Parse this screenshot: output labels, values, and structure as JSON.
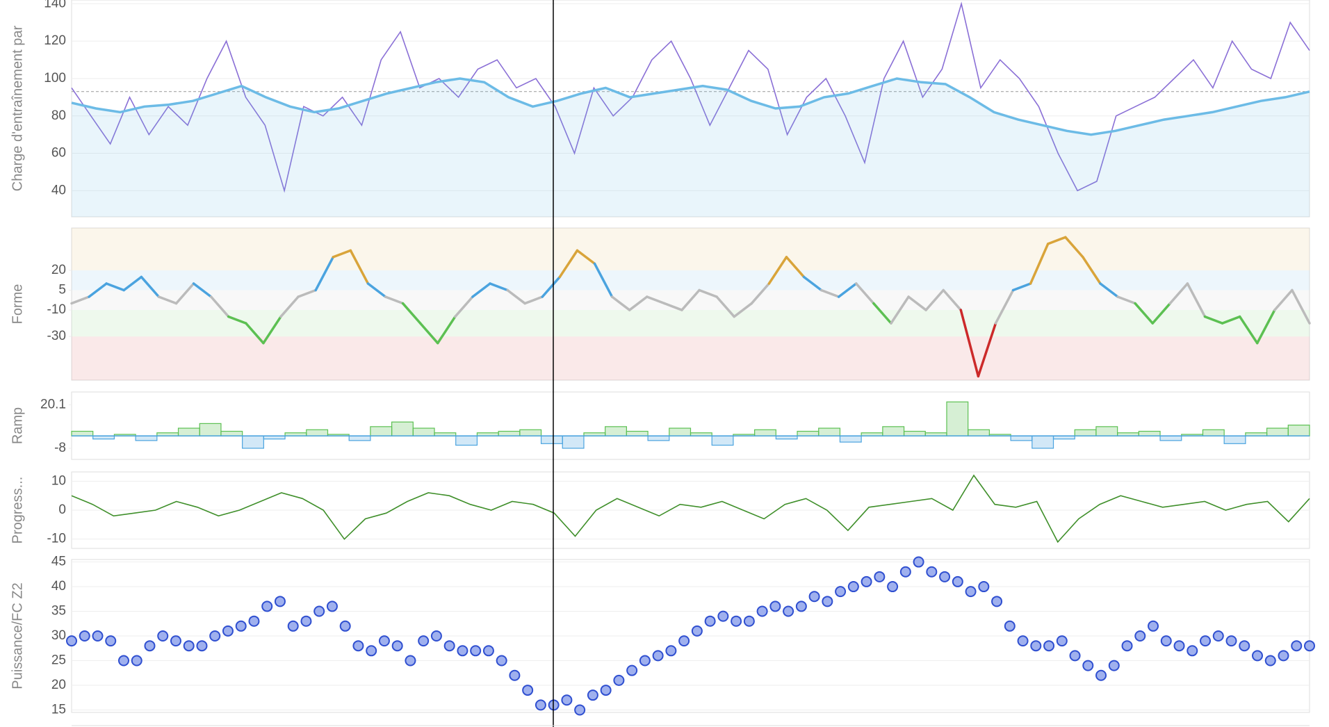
{
  "chart_data": [
    {
      "type": "line",
      "ylabel": "Charge d'entraînement par",
      "ylim": [
        26,
        142
      ],
      "yticks": [
        40,
        60,
        80,
        100,
        120,
        140
      ],
      "grid": true,
      "reference_line": 93,
      "series": [
        {
          "color": "#8a6fd6",
          "fill": false,
          "values": [
            95,
            80,
            65,
            90,
            70,
            85,
            75,
            100,
            120,
            90,
            75,
            40,
            85,
            80,
            90,
            75,
            110,
            125,
            95,
            100,
            90,
            105,
            110,
            95,
            100,
            85,
            60,
            95,
            80,
            90,
            110,
            120,
            100,
            75,
            95,
            115,
            105,
            70,
            90,
            100,
            80,
            55,
            100,
            120,
            90,
            105,
            140,
            95,
            110,
            100,
            85,
            60,
            40,
            45,
            80,
            85,
            90,
            100,
            110,
            95,
            120,
            105,
            100,
            130,
            115
          ]
        },
        {
          "color": "#6cbbe6",
          "fill": true,
          "values": [
            87,
            84,
            82,
            85,
            86,
            88,
            92,
            96,
            90,
            85,
            82,
            84,
            88,
            92,
            95,
            98,
            100,
            98,
            90,
            85,
            88,
            92,
            95,
            90,
            92,
            94,
            96,
            94,
            88,
            84,
            85,
            90,
            92,
            96,
            100,
            98,
            97,
            90,
            82,
            78,
            75,
            72,
            70,
            72,
            75,
            78,
            80,
            82,
            85,
            88,
            90,
            93
          ]
        }
      ]
    },
    {
      "type": "zoneline",
      "ylabel": "Forme",
      "ylim": [
        -63,
        52
      ],
      "yticks": [
        20,
        5,
        -10,
        -30
      ],
      "zone_colors": [
        "#d9a43a",
        "#4aa3df",
        "#bbbbbb",
        "#5cc052",
        "#cc2a2a"
      ],
      "values": [
        -5,
        0,
        10,
        5,
        15,
        0,
        -5,
        10,
        0,
        -15,
        -20,
        -35,
        -15,
        0,
        5,
        30,
        35,
        10,
        0,
        -5,
        -20,
        -35,
        -15,
        0,
        10,
        5,
        -5,
        0,
        15,
        35,
        25,
        0,
        -10,
        0,
        -5,
        -10,
        5,
        0,
        -15,
        -5,
        10,
        30,
        15,
        5,
        0,
        10,
        -5,
        -20,
        0,
        -10,
        5,
        -10,
        -60,
        -20,
        5,
        10,
        40,
        45,
        30,
        10,
        0,
        -5,
        -20,
        -5,
        10,
        -15,
        -20,
        -15,
        -35,
        -10,
        5,
        -20
      ]
    },
    {
      "type": "step",
      "ylabel": "Ramp",
      "ylim": [
        -15.2,
        28.4
      ],
      "yticks": [
        20.1,
        -8
      ],
      "colors": [
        "#5cc052",
        "#4aa3df"
      ],
      "values": [
        3,
        -2,
        1,
        -3,
        2,
        5,
        8,
        3,
        -8,
        -2,
        2,
        4,
        1,
        -3,
        6,
        9,
        5,
        2,
        -6,
        2,
        3,
        4,
        -5,
        -8,
        2,
        6,
        3,
        -3,
        5,
        2,
        -6,
        1,
        4,
        -2,
        3,
        5,
        -4,
        2,
        6,
        3,
        2,
        22,
        4,
        1,
        -3,
        -8,
        -2,
        4,
        6,
        2,
        3,
        -3,
        1,
        4,
        -5,
        2,
        5,
        7
      ]
    },
    {
      "type": "line",
      "ylabel": "Progress...",
      "ylim": [
        -13.2,
        13.2
      ],
      "yticks": [
        10,
        0,
        -10
      ],
      "grid": true,
      "series": [
        {
          "color": "#3f8f2a",
          "fill": false,
          "values": [
            5,
            2,
            -2,
            -1,
            0,
            3,
            1,
            -2,
            0,
            3,
            6,
            4,
            0,
            -10,
            -3,
            -1,
            3,
            6,
            5,
            2,
            0,
            3,
            2,
            -1,
            -9,
            0,
            4,
            1,
            -2,
            2,
            1,
            3,
            0,
            -3,
            2,
            4,
            0,
            -7,
            1,
            2,
            3,
            4,
            0,
            12,
            2,
            1,
            3,
            -11,
            -3,
            2,
            5,
            3,
            1,
            2,
            3,
            0,
            2,
            3,
            -4,
            4
          ]
        }
      ]
    },
    {
      "type": "scatter",
      "ylabel": "Puissance/FC Z2",
      "ylim": [
        14.5,
        45.5
      ],
      "yticks": [
        15,
        20,
        25,
        30,
        35,
        40,
        45
      ],
      "grid": true,
      "color": "#2f4fd0",
      "values": [
        29,
        30,
        30,
        29,
        25,
        25,
        28,
        30,
        29,
        28,
        28,
        30,
        31,
        32,
        33,
        36,
        37,
        32,
        33,
        35,
        36,
        32,
        28,
        27,
        29,
        28,
        25,
        29,
        30,
        28,
        27,
        27,
        27,
        25,
        22,
        19,
        16,
        16,
        17,
        15,
        18,
        19,
        21,
        23,
        25,
        26,
        27,
        29,
        31,
        33,
        34,
        33,
        33,
        35,
        36,
        35,
        36,
        38,
        37,
        39,
        40,
        41,
        42,
        40,
        43,
        45,
        43,
        42,
        41,
        39,
        40,
        37,
        32,
        29,
        28,
        28,
        29,
        26,
        24,
        22,
        24,
        28,
        30,
        32,
        29,
        28,
        27,
        29,
        30,
        29,
        28,
        26,
        25,
        26,
        28,
        28
      ]
    }
  ]
}
